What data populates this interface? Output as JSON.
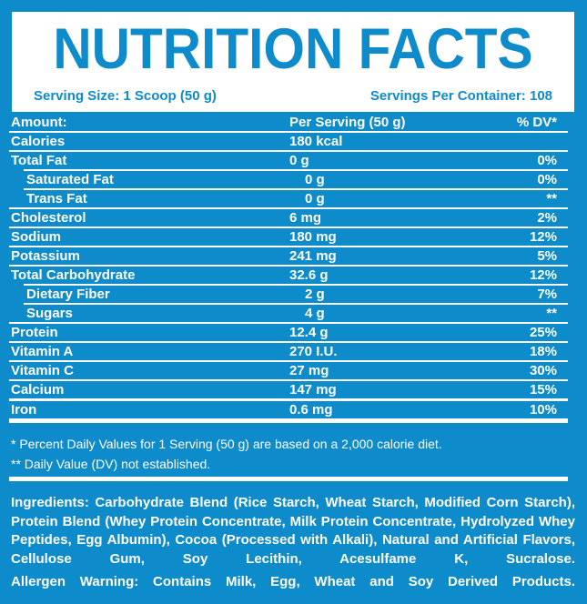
{
  "colors": {
    "background_blue": "#0e8bca",
    "text_white": "#ffffff",
    "header_box_white": "#ffffff",
    "accent_blue": "#0e8bca"
  },
  "header": {
    "title": "NUTRITION FACTS",
    "serving_size": "Serving Size: 1 Scoop (50 g)",
    "servings_per_container": "Servings Per Container: 108"
  },
  "table": {
    "columns": {
      "amount": "Amount:",
      "per_serving": "Per Serving (50 g)",
      "dv": "% DV*"
    },
    "rows": [
      {
        "label": "Calories",
        "value": "180 kcal",
        "dv": ""
      },
      {
        "label": "Total Fat",
        "value": "0 g",
        "dv": "0%"
      },
      {
        "label": "Saturated Fat",
        "value": "0 g",
        "dv": "0%"
      },
      {
        "label": "Trans Fat",
        "value": "0 g",
        "dv": "**"
      },
      {
        "label": "Cholesterol",
        "value": "6 mg",
        "dv": "2%"
      },
      {
        "label": "Sodium",
        "value": "180 mg",
        "dv": "12%"
      },
      {
        "label": "Potassium",
        "value": "241 mg",
        "dv": "5%"
      },
      {
        "label": "Total Carbohydrate",
        "value": "32.6 g",
        "dv": "12%"
      },
      {
        "label": "Dietary Fiber",
        "value": "2 g",
        "dv": "7%"
      },
      {
        "label": "Sugars",
        "value": "4 g",
        "dv": "**"
      },
      {
        "label": "Protein",
        "value": "12.4 g",
        "dv": "25%"
      },
      {
        "label": "Vitamin A",
        "value": "270 I.U.",
        "dv": "18%"
      },
      {
        "label": "Vitamin C",
        "value": "27 mg",
        "dv": "30%"
      },
      {
        "label": "Calcium",
        "value": "147 mg",
        "dv": "15%"
      },
      {
        "label": "Iron",
        "value": "0.6 mg",
        "dv": "10%"
      }
    ]
  },
  "footnotes": [
    "* Percent Daily Values for 1 Serving (50 g) are based on a 2,000 calorie diet.",
    "** Daily Value (DV) not established."
  ],
  "ingredients": "Ingredients: Carbohydrate Blend (Rice Starch, Wheat Starch, Modified Corn Starch), Protein Blend (Whey Protein Concentrate, Milk Protein Concentrate, Hydrolyzed Whey Peptides, Egg Albumin), Cocoa (Processed with Alkali), Natural and Artificial Flavors, Cellulose Gum, Soy Lecithin, Acesulfame K, Sucralose.",
  "allergen_warning": "Allergen Warning: Contains Milk, Egg, Wheat and Soy Derived Products."
}
